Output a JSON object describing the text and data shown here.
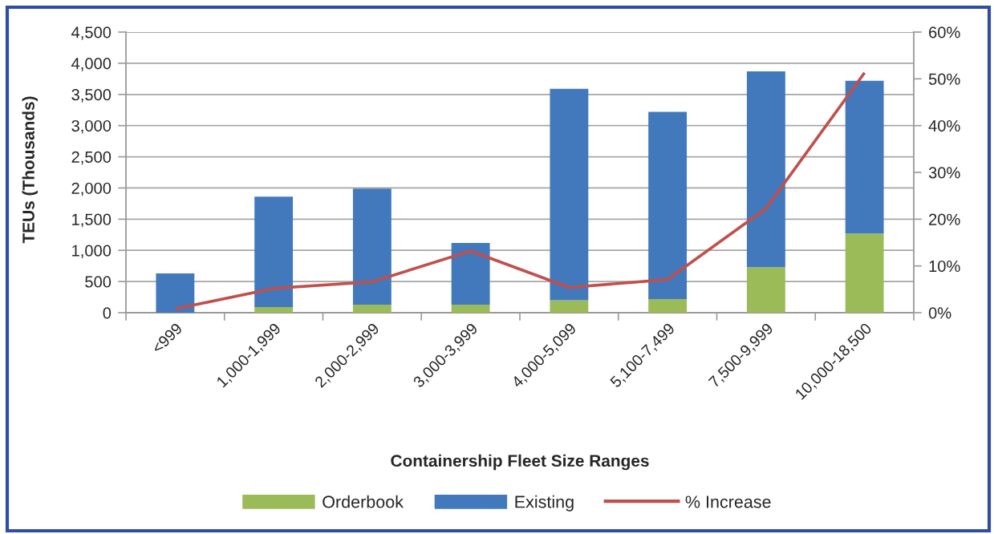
{
  "chart_data": {
    "type": "bar",
    "stacked": true,
    "xlabel": "Containership Fleet Size Ranges",
    "ylabel": "TEUs (Thousands)",
    "categories": [
      "<999",
      "1,000-1,999",
      "2,000-2,999",
      "3,000-3,999",
      "4,000-5,099",
      "5,100-7,499",
      "7,500-9,999",
      "10,000-18,500"
    ],
    "series": [
      {
        "name": "Orderbook",
        "color": "#9bbb59",
        "values": [
          0,
          90,
          130,
          130,
          200,
          220,
          730,
          1270
        ]
      },
      {
        "name": "Existing",
        "color": "#4279bd",
        "values": [
          630,
          1770,
          1860,
          990,
          3390,
          3000,
          3140,
          2450
        ]
      },
      {
        "name": "% Increase",
        "type": "line",
        "axis": "y2",
        "color": "#c0504d",
        "values": [
          0.8,
          5.2,
          6.6,
          13.2,
          5.4,
          7.1,
          22.3,
          51.3
        ]
      }
    ],
    "ylim": [
      0,
      4500
    ],
    "yticks": [
      0,
      500,
      {
        "value": 1000,
        "label": "1,000"
      },
      {
        "value": 1500,
        "label": "1,500"
      },
      {
        "value": 2000,
        "label": "2,000"
      },
      {
        "value": 2500,
        "label": "2,500"
      },
      {
        "value": 3000,
        "label": "3,000"
      },
      {
        "value": 3500,
        "label": "3,500"
      },
      {
        "value": 4000,
        "label": "4,000"
      },
      {
        "value": 4500,
        "label": "4,500"
      }
    ],
    "y2lim": [
      0,
      60
    ],
    "y2ticks": [
      {
        "value": 0,
        "label": "0%"
      },
      {
        "value": 10,
        "label": "10%"
      },
      {
        "value": 20,
        "label": "20%"
      },
      {
        "value": 30,
        "label": "30%"
      },
      {
        "value": 40,
        "label": "40%"
      },
      {
        "value": 50,
        "label": "50%"
      },
      {
        "value": 60,
        "label": "60%"
      }
    ],
    "grid": "y",
    "legend": "bottom"
  }
}
